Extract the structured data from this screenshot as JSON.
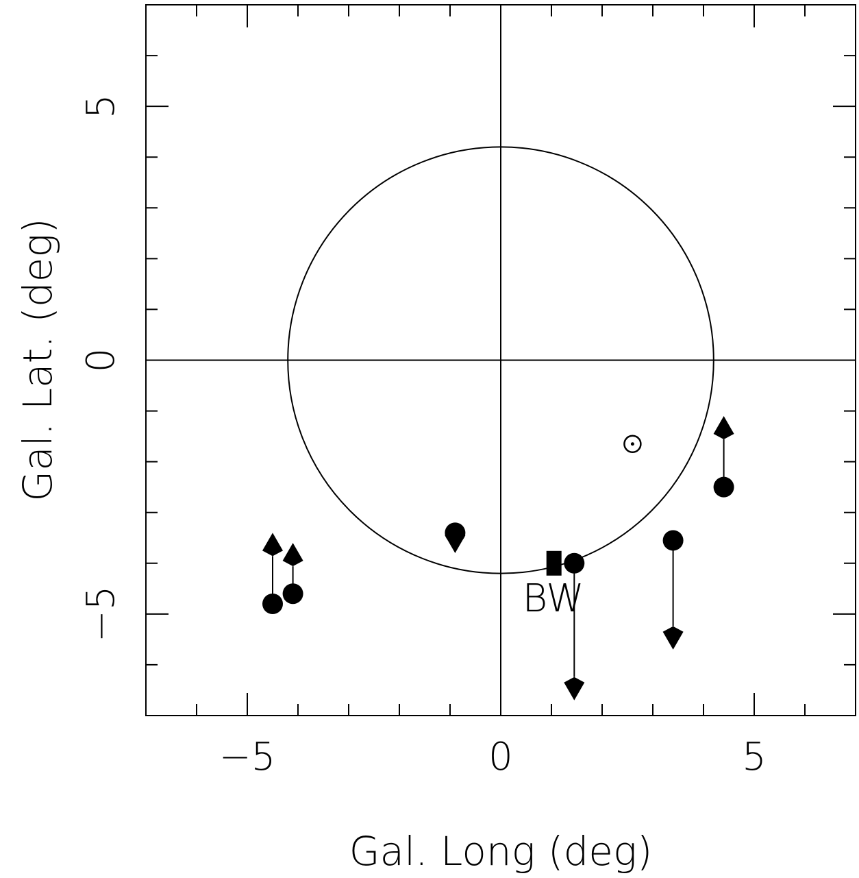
{
  "chart_data": {
    "type": "scatter",
    "xlabel": "Gal. Long (deg)",
    "ylabel": "Gal. Lat. (deg)",
    "xlim": [
      -7,
      7
    ],
    "ylim": [
      -7,
      7
    ],
    "x_ticks": [
      {
        "value": -5,
        "label": "−5"
      },
      {
        "value": 0,
        "label": "0"
      },
      {
        "value": 5,
        "label": "5"
      }
    ],
    "y_ticks": [
      {
        "value": -5,
        "label": "−5"
      },
      {
        "value": 0,
        "label": "0"
      },
      {
        "value": 5,
        "label": "5"
      }
    ],
    "minor_tick_step": 1,
    "zero_lines": true,
    "circle": {
      "center": [
        0,
        0
      ],
      "radius": 4.2
    },
    "points": [
      {
        "x": -4.5,
        "y": -4.8,
        "marker": "filled-circle",
        "arrow": "up",
        "arrow_to": -3.4
      },
      {
        "x": -4.1,
        "y": -4.6,
        "marker": "filled-circle",
        "arrow": "up",
        "arrow_to": -3.6
      },
      {
        "x": -0.9,
        "y": -3.4,
        "marker": "filled-circle",
        "arrow": "down",
        "arrow_to": -3.8
      },
      {
        "x": 1.45,
        "y": -4.0,
        "marker": "filled-circle",
        "arrow": "down",
        "arrow_to": -6.7
      },
      {
        "x": 3.4,
        "y": -3.55,
        "marker": "filled-circle",
        "arrow": "down",
        "arrow_to": -5.7
      },
      {
        "x": 4.4,
        "y": -2.5,
        "marker": "filled-circle",
        "arrow": "up",
        "arrow_to": -1.1
      },
      {
        "x": 2.6,
        "y": -1.65,
        "marker": "open-circle-dot"
      },
      {
        "x": 1.05,
        "y": -4.0,
        "marker": "filled-square",
        "label": "BW"
      }
    ]
  }
}
